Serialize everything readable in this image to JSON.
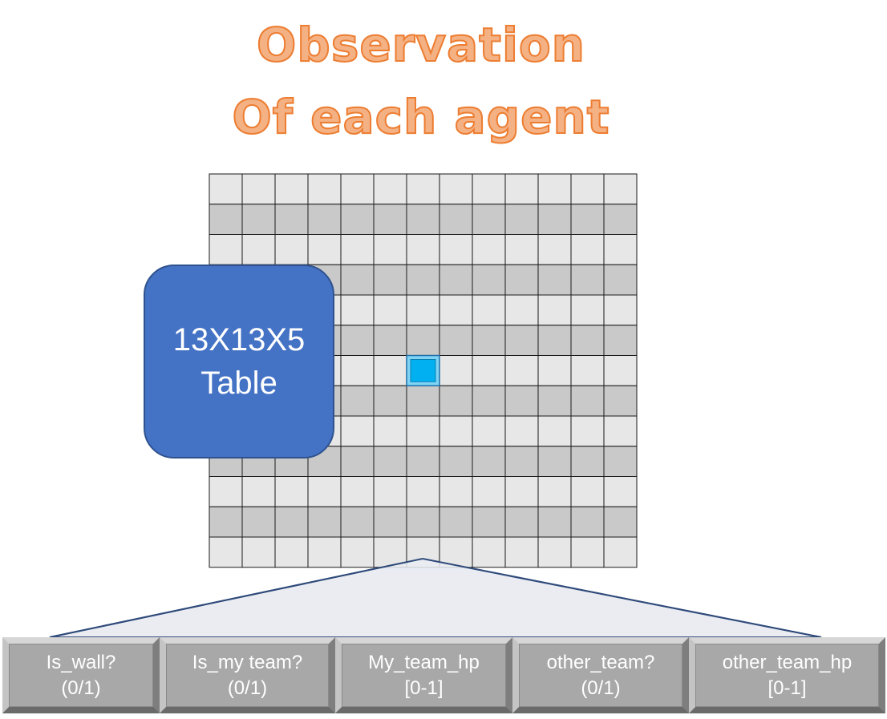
{
  "title": {
    "line1": "Observation",
    "line2": "Of each agent"
  },
  "grid": {
    "rows": 13,
    "cols": 13,
    "agent_cell": {
      "row": 6,
      "col": 6
    },
    "colors": {
      "light": "#e7e7e7",
      "dark": "#c9c9c9",
      "line": "#1a1a1a",
      "agent": "#00b0f0",
      "agent_border": "#1f6fa8"
    }
  },
  "callout": {
    "line1": "13X13X5",
    "line2": "Table"
  },
  "features": [
    {
      "name": "Is_wall?",
      "range": "(0/1)"
    },
    {
      "name": "Is_my team?",
      "range": "(0/1)"
    },
    {
      "name": "My_team_hp",
      "range": "[0-1]"
    },
    {
      "name": "other_team?",
      "range": "(0/1)"
    },
    {
      "name": "other_team_hp",
      "range": "[0-1]"
    }
  ]
}
